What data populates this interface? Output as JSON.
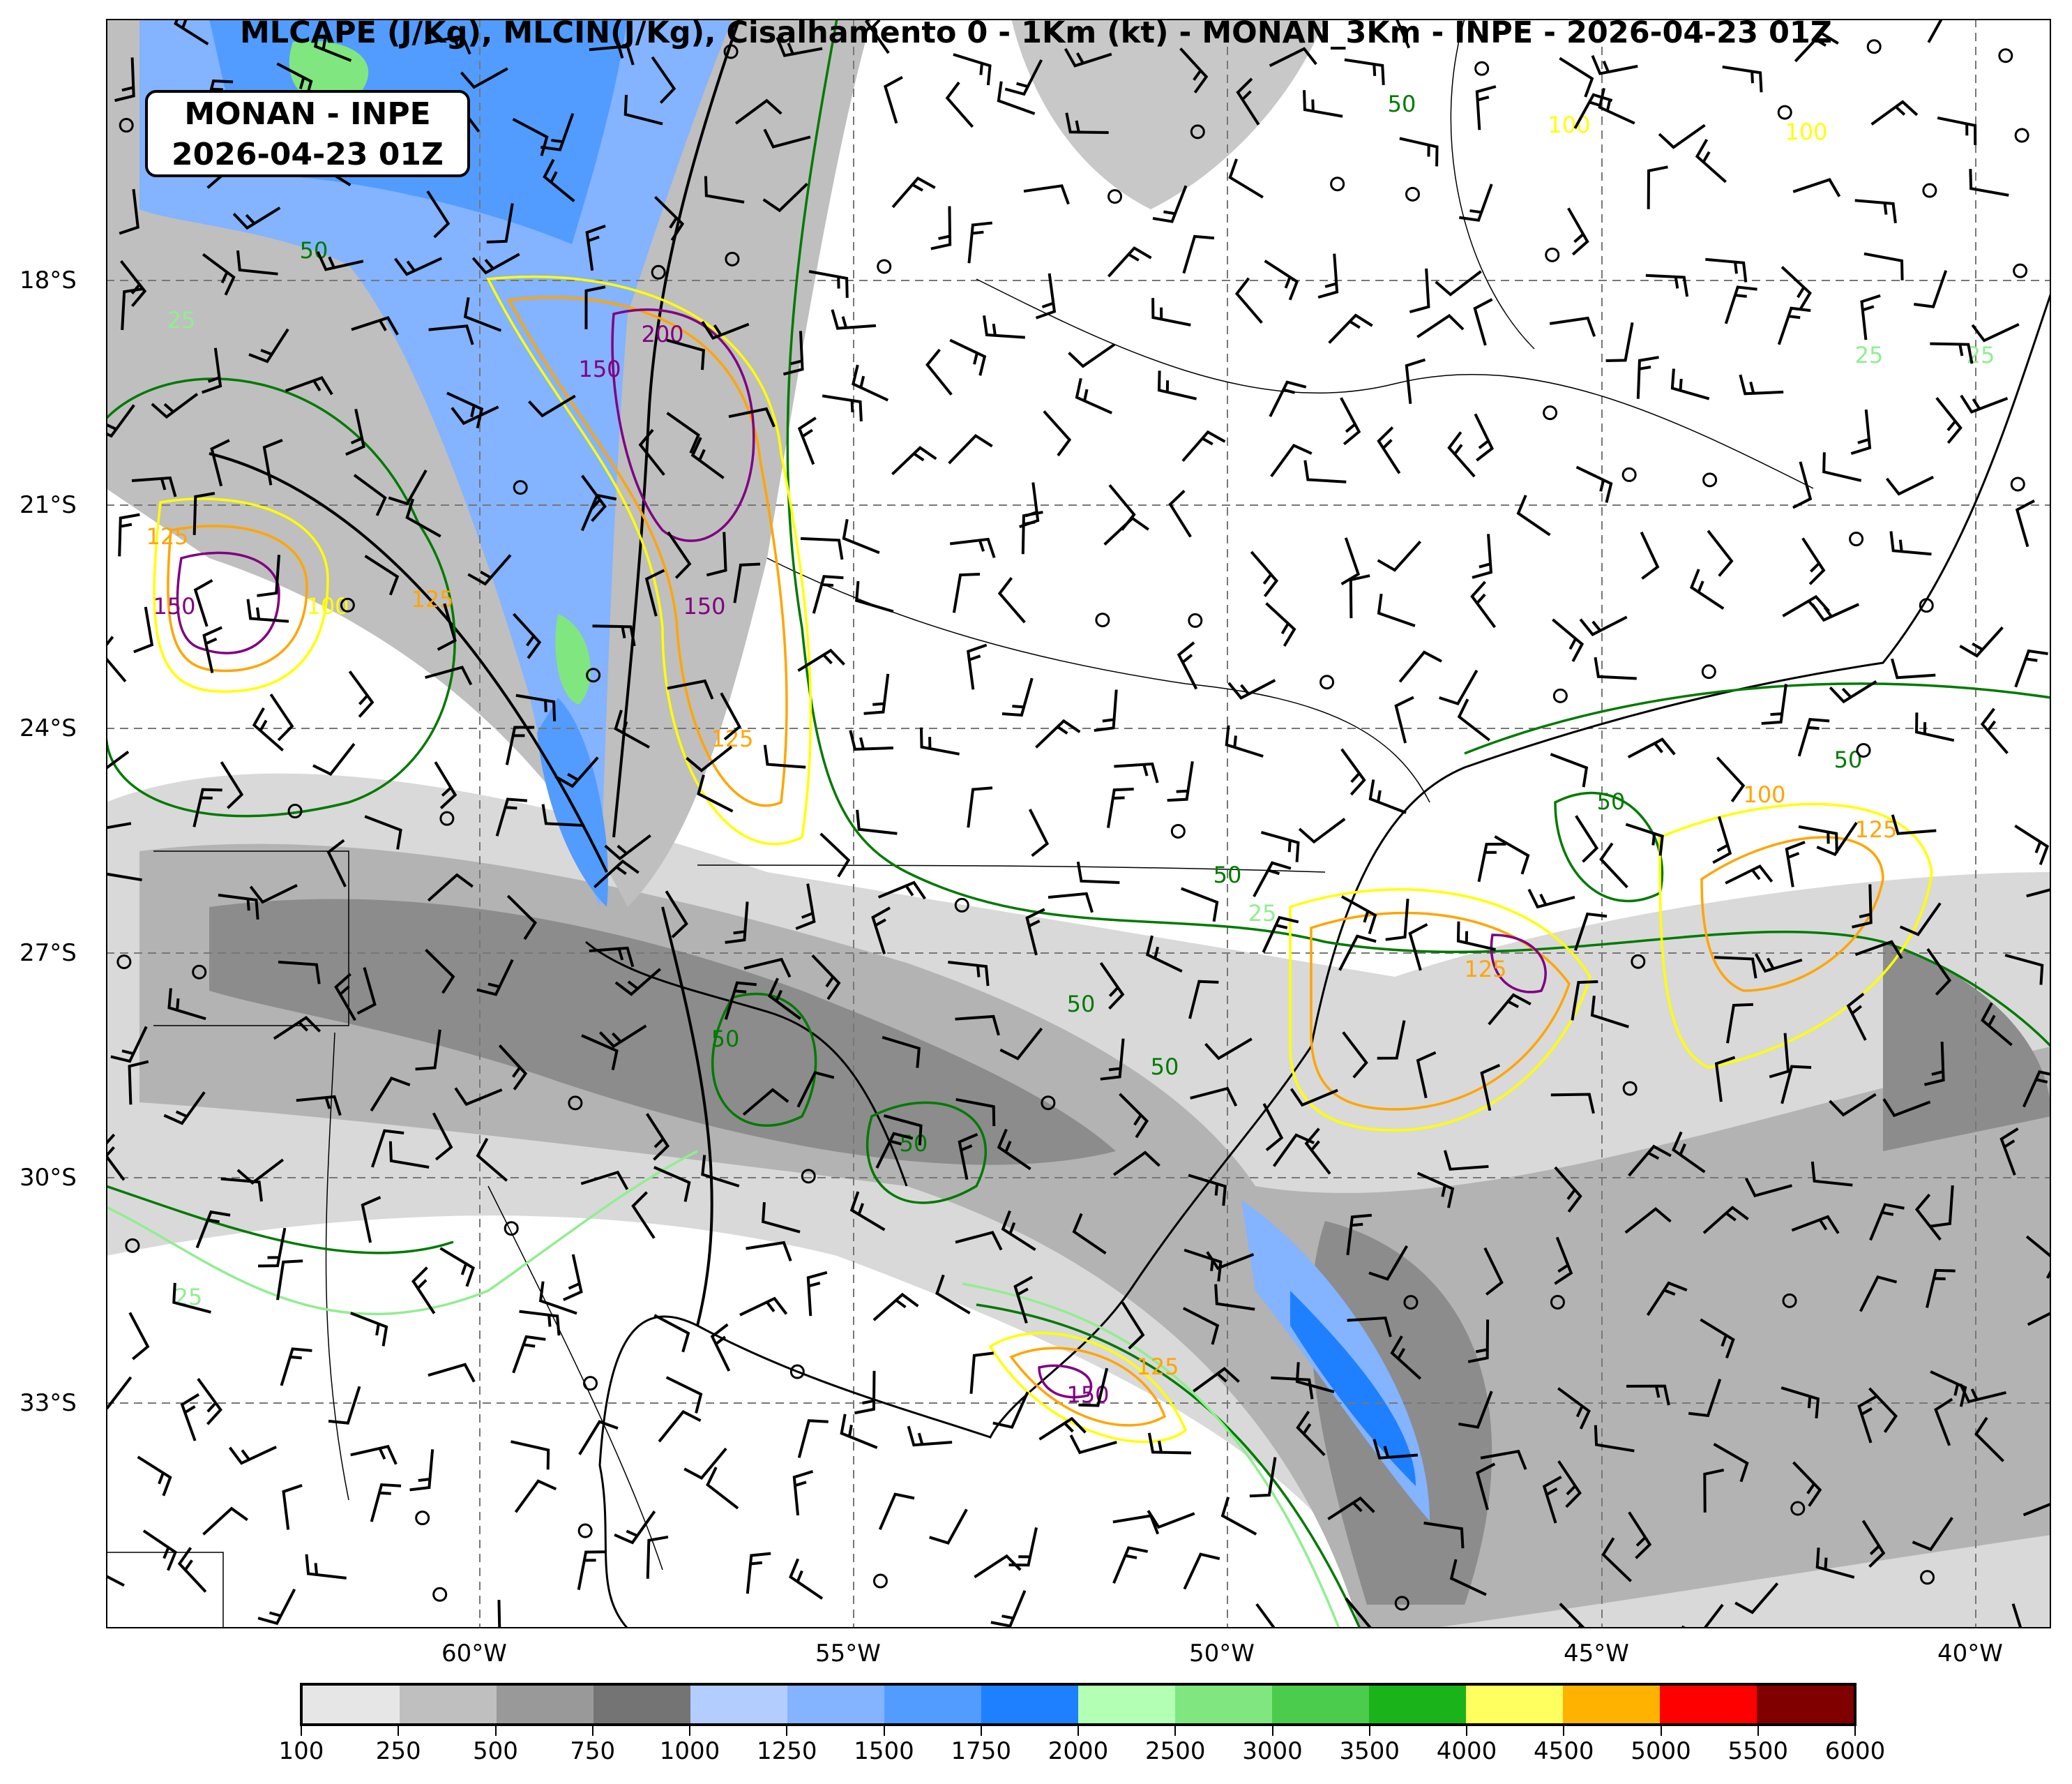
{
  "title": "MLCAPE (J/Kg), MLCIN(J/Kg), Cisalhamento 0 - 1Km (kt) - MONAN_3Km - INPE - 2026-04-23 01Z",
  "info_box": {
    "line1": "MONAN - INPE",
    "line2": "2026-04-23 01Z"
  },
  "lat_labels": [
    "18°S",
    "21°S",
    "24°S",
    "27°S",
    "30°S",
    "33°S"
  ],
  "lon_labels": [
    "60°W",
    "55°W",
    "50°W",
    "45°W",
    "40°W"
  ],
  "colorbar": {
    "levels": [
      "100",
      "250",
      "500",
      "750",
      "1000",
      "1250",
      "1500",
      "1750",
      "2000",
      "2500",
      "3000",
      "3500",
      "4000",
      "4500",
      "5000",
      "5500",
      "6000"
    ],
    "colors": [
      "#e6e6e6",
      "#bfbfbf",
      "#999999",
      "#747474",
      "#b3cdff",
      "#84b3ff",
      "#529cff",
      "#1e80ff",
      "#b3ffb3",
      "#80e680",
      "#4ccc4c",
      "#1ab31a",
      "#ffff60",
      "#ffb300",
      "#ff0000",
      "#800000"
    ]
  },
  "contour_colors": {
    "shear_25": "#90ee90",
    "shear_50": "#007a00",
    "cin_100": "#ffff00",
    "cin_125": "#ffa500",
    "cin_150": "#800080"
  },
  "contour_labels": [
    "50",
    "50",
    "25",
    "150",
    "200",
    "150",
    "125",
    "100",
    "125",
    "150",
    "25",
    "100",
    "100",
    "125",
    "50",
    "25",
    "50",
    "50",
    "50",
    "50",
    "50",
    "25",
    "100",
    "125",
    "125",
    "150",
    "125",
    "50",
    "25"
  ]
}
